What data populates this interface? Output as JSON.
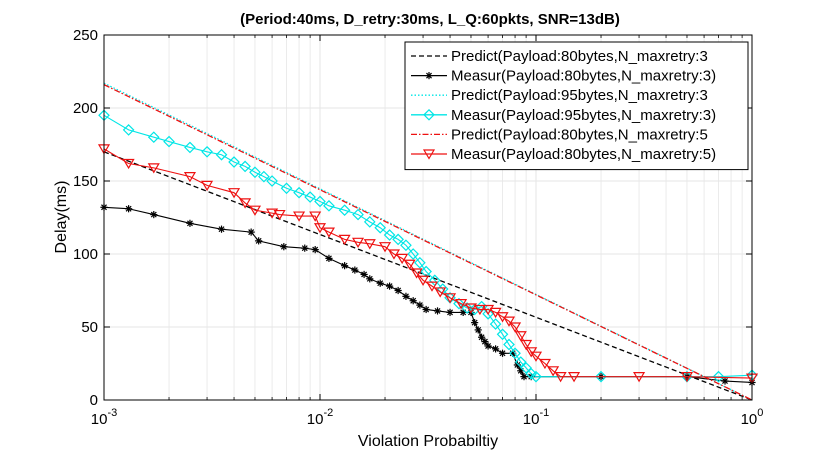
{
  "chart_data": {
    "type": "line",
    "title": "(Period:40ms, D_retry:30ms, L_Q:60pkts, SNR=13dB)",
    "xlabel": "Violation Probabiltiy",
    "ylabel": "Delay(ms)",
    "xscale": "log",
    "xlim": [
      0.001,
      1
    ],
    "ylim": [
      0,
      250
    ],
    "yticks": [
      0,
      50,
      100,
      150,
      200,
      250
    ],
    "xticks": [
      {
        "value": 0.001,
        "base": "10",
        "exp": "-3"
      },
      {
        "value": 0.01,
        "base": "10",
        "exp": "-2"
      },
      {
        "value": 0.1,
        "base": "10",
        "exp": "-1"
      },
      {
        "value": 1,
        "base": "10",
        "exp": "0"
      }
    ],
    "grid": true,
    "legend_position": "top-right",
    "series": [
      {
        "name": "Predict(Payload:80bytes,N_maxretry:3",
        "color": "#000000",
        "style": "dashed",
        "marker": "none",
        "points": [
          [
            0.001,
            170
          ],
          [
            1,
            0
          ]
        ]
      },
      {
        "name": "Measur(Payload:80bytes,N_maxretry:3)",
        "color": "#000000",
        "style": "solid",
        "marker": "star",
        "points": [
          [
            0.001,
            132
          ],
          [
            0.0013,
            131
          ],
          [
            0.0017,
            127
          ],
          [
            0.0025,
            121
          ],
          [
            0.0035,
            117
          ],
          [
            0.0048,
            115
          ],
          [
            0.0052,
            109
          ],
          [
            0.0068,
            105
          ],
          [
            0.0085,
            104
          ],
          [
            0.0095,
            103
          ],
          [
            0.011,
            97
          ],
          [
            0.013,
            92
          ],
          [
            0.0145,
            89
          ],
          [
            0.016,
            86
          ],
          [
            0.017,
            83
          ],
          [
            0.019,
            80
          ],
          [
            0.021,
            78
          ],
          [
            0.023,
            75
          ],
          [
            0.025,
            71
          ],
          [
            0.027,
            68
          ],
          [
            0.029,
            65
          ],
          [
            0.031,
            62
          ],
          [
            0.035,
            61
          ],
          [
            0.04,
            60
          ],
          [
            0.046,
            60
          ],
          [
            0.05,
            60
          ],
          [
            0.052,
            53
          ],
          [
            0.054,
            48
          ],
          [
            0.056,
            43
          ],
          [
            0.058,
            40
          ],
          [
            0.06,
            37
          ],
          [
            0.065,
            35
          ],
          [
            0.07,
            32
          ],
          [
            0.078,
            32
          ],
          [
            0.082,
            24
          ],
          [
            0.085,
            20
          ],
          [
            0.088,
            16
          ],
          [
            0.095,
            16
          ],
          [
            0.2,
            16
          ],
          [
            0.5,
            16
          ],
          [
            0.75,
            13
          ],
          [
            1,
            12
          ]
        ]
      },
      {
        "name": "Predict(Payload:95bytes,N_maxretry:3",
        "color": "#00e6e6",
        "style": "dotted",
        "marker": "none",
        "points": [
          [
            0.001,
            217
          ],
          [
            1,
            0
          ]
        ]
      },
      {
        "name": "Measur(Payload:95bytes,N_maxretry:3)",
        "color": "#00e6e6",
        "style": "solid",
        "marker": "diamond",
        "points": [
          [
            0.001,
            195
          ],
          [
            0.0013,
            185
          ],
          [
            0.0017,
            180
          ],
          [
            0.002,
            177
          ],
          [
            0.0025,
            173
          ],
          [
            0.003,
            170
          ],
          [
            0.0035,
            168
          ],
          [
            0.004,
            163
          ],
          [
            0.0045,
            160
          ],
          [
            0.005,
            156
          ],
          [
            0.0055,
            153
          ],
          [
            0.006,
            150
          ],
          [
            0.007,
            145
          ],
          [
            0.008,
            142
          ],
          [
            0.009,
            139
          ],
          [
            0.01,
            136
          ],
          [
            0.011,
            133
          ],
          [
            0.013,
            130
          ],
          [
            0.015,
            127
          ],
          [
            0.017,
            122
          ],
          [
            0.019,
            118
          ],
          [
            0.021,
            113
          ],
          [
            0.023,
            110
          ],
          [
            0.025,
            106
          ],
          [
            0.027,
            100
          ],
          [
            0.029,
            94
          ],
          [
            0.031,
            88
          ],
          [
            0.034,
            82
          ],
          [
            0.037,
            76
          ],
          [
            0.04,
            70
          ],
          [
            0.044,
            66
          ],
          [
            0.048,
            63
          ],
          [
            0.052,
            62
          ],
          [
            0.056,
            64
          ],
          [
            0.06,
            59
          ],
          [
            0.065,
            52
          ],
          [
            0.07,
            45
          ],
          [
            0.075,
            38
          ],
          [
            0.08,
            32
          ],
          [
            0.085,
            26
          ],
          [
            0.09,
            22
          ],
          [
            0.095,
            18
          ],
          [
            0.1,
            16
          ],
          [
            0.2,
            16
          ],
          [
            0.5,
            16
          ],
          [
            0.7,
            16
          ],
          [
            1,
            17
          ]
        ]
      },
      {
        "name": "Predict(Payload:80bytes,N_maxretry:5",
        "color": "#ee1111",
        "style": "dashdot",
        "marker": "none",
        "points": [
          [
            0.001,
            216
          ],
          [
            1,
            0
          ]
        ]
      },
      {
        "name": "Measur(Payload:80bytes,N_maxretry:5)",
        "color": "#ee1111",
        "style": "solid",
        "marker": "triangle-down",
        "points": [
          [
            0.001,
            172
          ],
          [
            0.0013,
            162
          ],
          [
            0.0017,
            159
          ],
          [
            0.0025,
            153
          ],
          [
            0.003,
            147
          ],
          [
            0.004,
            142
          ],
          [
            0.0045,
            135
          ],
          [
            0.005,
            130
          ],
          [
            0.006,
            128
          ],
          [
            0.0065,
            127
          ],
          [
            0.008,
            126
          ],
          [
            0.0095,
            126
          ],
          [
            0.01,
            118
          ],
          [
            0.011,
            115
          ],
          [
            0.013,
            110
          ],
          [
            0.015,
            108
          ],
          [
            0.017,
            107
          ],
          [
            0.02,
            105
          ],
          [
            0.022,
            100
          ],
          [
            0.024,
            97
          ],
          [
            0.026,
            93
          ],
          [
            0.028,
            87
          ],
          [
            0.03,
            82
          ],
          [
            0.033,
            78
          ],
          [
            0.036,
            74
          ],
          [
            0.04,
            70
          ],
          [
            0.045,
            66
          ],
          [
            0.05,
            63
          ],
          [
            0.055,
            62
          ],
          [
            0.06,
            62
          ],
          [
            0.065,
            60
          ],
          [
            0.07,
            57
          ],
          [
            0.075,
            54
          ],
          [
            0.08,
            50
          ],
          [
            0.085,
            44
          ],
          [
            0.09,
            38
          ],
          [
            0.095,
            33
          ],
          [
            0.1,
            30
          ],
          [
            0.11,
            25
          ],
          [
            0.12,
            20
          ],
          [
            0.13,
            16
          ],
          [
            0.15,
            16
          ],
          [
            0.3,
            16
          ],
          [
            0.5,
            16
          ],
          [
            1,
            15
          ]
        ]
      }
    ]
  }
}
